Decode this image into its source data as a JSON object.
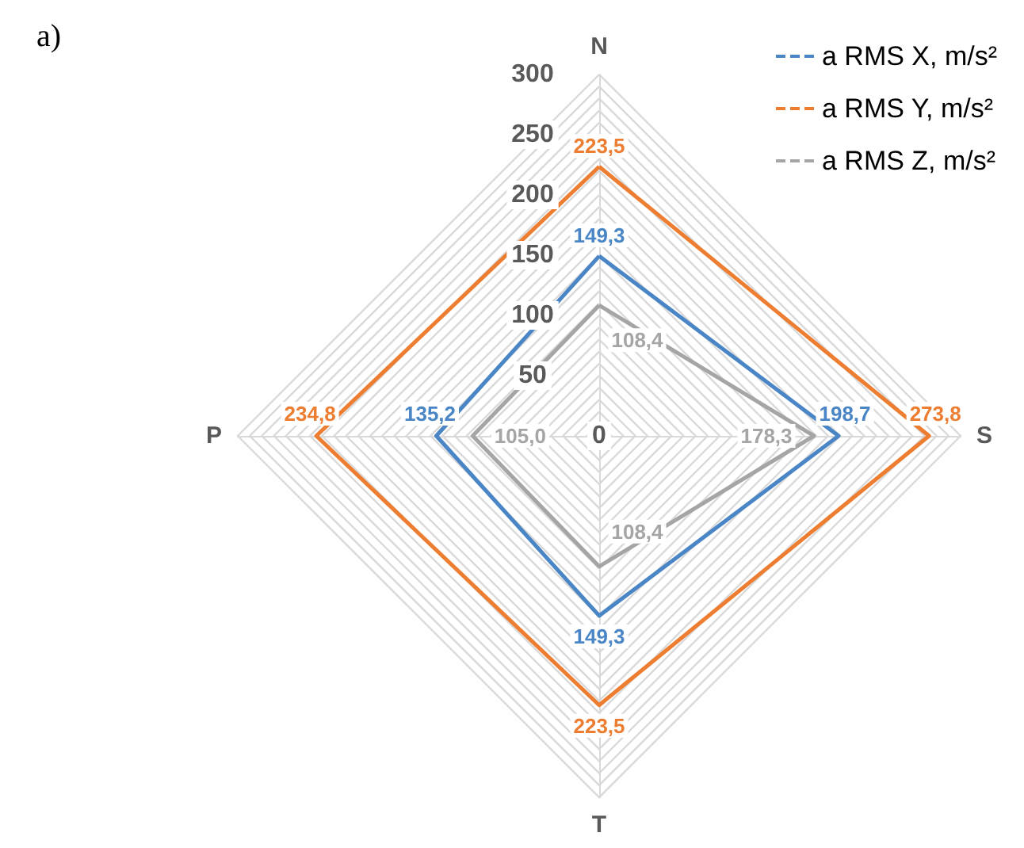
{
  "chart_data": {
    "type": "radar",
    "title": "a)",
    "categories": [
      "N",
      "S",
      "T",
      "P"
    ],
    "series": [
      {
        "name": "a RMS X, m/s²",
        "color": "#4a86c5",
        "values": [
          149.3,
          198.7,
          149.3,
          135.2
        ],
        "value_labels": [
          "149,3",
          "198,7",
          "149,3",
          "135,2"
        ]
      },
      {
        "name": "a RMS Y, m/s²",
        "color": "#ed7d31",
        "values": [
          223.5,
          273.8,
          223.5,
          234.8
        ],
        "value_labels": [
          "223,5",
          "273,8",
          "223,5",
          "234,8"
        ]
      },
      {
        "name": "a RMS Z, m/s²",
        "color": "#a5a5a5",
        "values": [
          108.4,
          178.3,
          108.4,
          105.0
        ],
        "value_labels": [
          "108,4",
          "178,3",
          "108,4",
          "105,0"
        ]
      }
    ],
    "ylim": [
      0,
      300
    ],
    "yticks": [
      0,
      50,
      100,
      150,
      200,
      250,
      300
    ],
    "grid": true,
    "legend": "top right",
    "line_style": "solid",
    "marker": "none"
  }
}
